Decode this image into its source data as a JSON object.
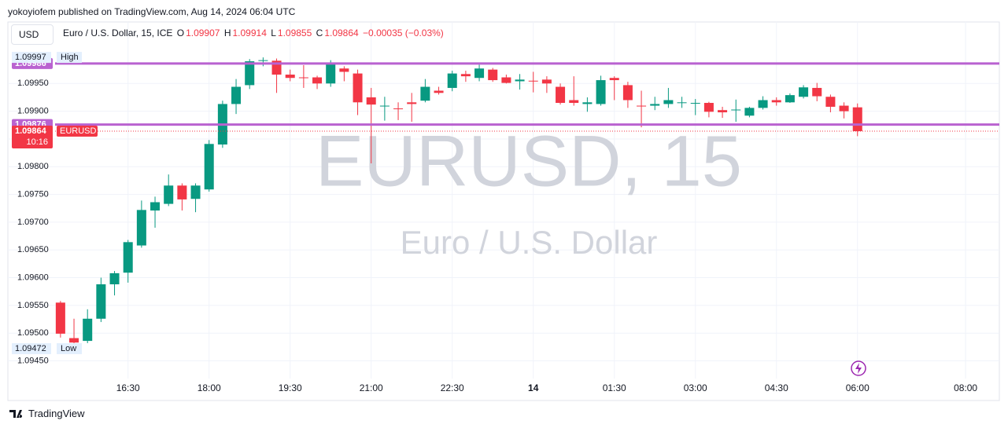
{
  "header": {
    "publisher": "yokoyiofem published on TradingView.com, Aug 14, 2024 06:04 UTC",
    "currency_button": "USD",
    "symbol": "Euro / U.S. Dollar, 15, ICE",
    "ohlc_prefixes": [
      "O",
      "H",
      "L",
      "C"
    ],
    "change": "−0.00035 (−0.03%)"
  },
  "watermark": {
    "title": "EURUSD, 15",
    "subtitle": "Euro / U.S. Dollar"
  },
  "footer": {
    "brand": "TradingView"
  },
  "chart_data": {
    "type": "candlestick",
    "up_color": "#089981",
    "down_color": "#f23645",
    "grid": true,
    "open": [
      1.09555,
      1.09491,
      1.09486,
      1.09526,
      1.09588,
      1.09609,
      1.09658,
      1.09721,
      1.09733,
      1.09766,
      1.09742,
      1.09759,
      1.0984,
      1.09913,
      1.09947,
      1.09991,
      1.09991,
      1.09966,
      1.09961,
      1.09961,
      1.0995,
      1.09977,
      1.09968,
      1.09925,
      1.09909,
      1.09905,
      1.09916,
      1.09919,
      1.09937,
      1.09942,
      1.09967,
      1.0996,
      1.09975,
      1.09961,
      1.09954,
      1.09955,
      1.09957,
      1.09944,
      1.0992,
      1.09913,
      1.09913,
      1.0996,
      1.09947,
      1.0991,
      1.0991,
      1.09913,
      1.09915,
      1.09915,
      1.09915,
      1.09902,
      1.09902,
      1.09892,
      1.09906,
      1.0992,
      1.09916,
      1.09926,
      1.09942,
      1.09926,
      1.0991,
      1.09907
    ],
    "high": [
      1.09558,
      1.09526,
      1.09543,
      1.096,
      1.09612,
      1.09668,
      1.09739,
      1.09746,
      1.09786,
      1.0977,
      1.0977,
      1.09848,
      1.09919,
      1.09958,
      1.09994,
      1.09997,
      1.09995,
      1.09975,
      1.09983,
      1.09964,
      1.09992,
      1.09981,
      1.09975,
      1.09942,
      1.09926,
      1.09916,
      1.09933,
      1.09958,
      1.09944,
      1.09973,
      1.09973,
      1.09984,
      1.09978,
      1.09966,
      1.09967,
      1.09971,
      1.09963,
      1.0995,
      1.09963,
      1.09925,
      1.09964,
      1.09963,
      1.09953,
      1.09937,
      1.09926,
      1.09942,
      1.09926,
      1.09922,
      1.09917,
      1.09908,
      1.09921,
      1.09908,
      1.09927,
      1.09925,
      1.09932,
      1.09947,
      1.09951,
      1.0993,
      1.09916,
      1.09914
    ],
    "low": [
      1.09492,
      1.09472,
      1.09482,
      1.0952,
      1.09568,
      1.09591,
      1.09654,
      1.0969,
      1.09729,
      1.09721,
      1.09718,
      1.09755,
      1.09834,
      1.09895,
      1.0994,
      1.09981,
      1.09933,
      1.09954,
      1.09942,
      1.0994,
      1.09944,
      1.09954,
      1.09893,
      1.09806,
      1.09883,
      1.09884,
      1.09881,
      1.09916,
      1.0993,
      1.09936,
      1.09953,
      1.09954,
      1.09953,
      1.0995,
      1.09939,
      1.09934,
      1.09933,
      1.09912,
      1.0991,
      1.09899,
      1.0991,
      1.0992,
      1.09906,
      1.09871,
      1.09902,
      1.09906,
      1.09906,
      1.09893,
      1.09889,
      1.09888,
      1.09881,
      1.09889,
      1.09903,
      1.0991,
      1.09915,
      1.09923,
      1.09918,
      1.09898,
      1.09887,
      1.09855
    ],
    "close": [
      1.09499,
      1.09483,
      1.09526,
      1.09588,
      1.09608,
      1.09664,
      1.09722,
      1.09736,
      1.09766,
      1.09741,
      1.09766,
      1.09841,
      1.09913,
      1.09944,
      1.0999,
      1.09992,
      1.09966,
      1.0996,
      1.0996,
      1.0995,
      1.09987,
      1.09971,
      1.09916,
      1.09912,
      1.0991,
      1.09904,
      1.09913,
      1.09944,
      1.09933,
      1.09968,
      1.09963,
      1.09977,
      1.09956,
      1.09951,
      1.09957,
      1.09954,
      1.0995,
      1.09915,
      1.09915,
      1.09916,
      1.09956,
      1.09956,
      1.0992,
      1.09909,
      1.09913,
      1.0992,
      1.09916,
      1.09915,
      1.09899,
      1.09898,
      1.09903,
      1.09906,
      1.0992,
      1.09916,
      1.09929,
      1.09943,
      1.09927,
      1.09908,
      1.099,
      1.09864
    ],
    "xlim": [
      -0.4,
      69.5
    ],
    "xticks": [
      {
        "value": 5,
        "label": "16:30"
      },
      {
        "value": 11,
        "label": "18:00"
      },
      {
        "value": 17,
        "label": "19:30"
      },
      {
        "value": 23,
        "label": "21:00"
      },
      {
        "value": 29,
        "label": "22:30"
      },
      {
        "value": 35,
        "label": "14"
      },
      {
        "value": 41,
        "label": "01:30"
      },
      {
        "value": 47,
        "label": "03:00"
      },
      {
        "value": 53,
        "label": "04:30"
      },
      {
        "value": 59,
        "label": "06:00"
      },
      {
        "value": 67,
        "label": "08:00"
      }
    ],
    "ylim": [
      1.09421,
      1.10058
    ],
    "yticks": [
      {
        "value": 1.0945,
        "label": "1.09450"
      },
      {
        "value": 1.095,
        "label": "1.09500"
      },
      {
        "value": 1.0955,
        "label": "1.09550"
      },
      {
        "value": 1.096,
        "label": "1.09600"
      },
      {
        "value": 1.0965,
        "label": "1.09650"
      },
      {
        "value": 1.097,
        "label": "1.09700"
      },
      {
        "value": 1.0975,
        "label": "1.09750"
      },
      {
        "value": 1.098,
        "label": "1.09800"
      },
      {
        "value": 1.0985,
        "label": "1.09850"
      },
      {
        "value": 1.099,
        "label": "1.09900"
      },
      {
        "value": 1.0995,
        "label": "1.09950"
      }
    ],
    "hlines": [
      {
        "value": 1.09986,
        "color": "#b962d0"
      },
      {
        "value": 1.09876,
        "color": "#b962d0"
      }
    ],
    "last_price_symbol": "EURUSD",
    "countdown": "10:16",
    "high_marker": {
      "value": 1.09997,
      "text": "High"
    },
    "low_marker": {
      "value": 1.09472,
      "text": "Low"
    }
  }
}
